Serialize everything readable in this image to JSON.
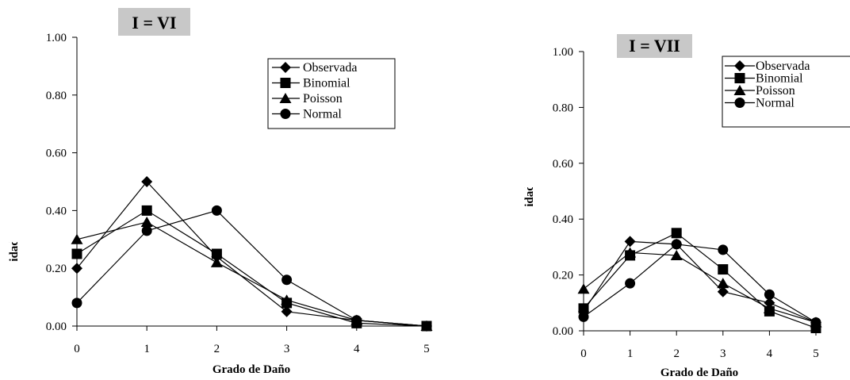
{
  "chart_data": [
    {
      "type": "line",
      "title": "I = VI",
      "xlabel": "Grado de Daño",
      "ylabel": "Probabilidad de Daño",
      "x": [
        0,
        1,
        2,
        3,
        4,
        5
      ],
      "xticks": [
        "0",
        "1",
        "2",
        "3",
        "4",
        "5"
      ],
      "yticks": [
        "0.00",
        "0.20",
        "0.40",
        "0.60",
        "0.80",
        "1.00"
      ],
      "ylim": [
        0,
        1
      ],
      "legend_position": "top-right",
      "series": [
        {
          "name": "Observada",
          "marker": "diamond",
          "values": [
            0.2,
            0.5,
            0.24,
            0.05,
            0.02,
            0.0
          ]
        },
        {
          "name": "Binomial",
          "marker": "square",
          "values": [
            0.25,
            0.4,
            0.25,
            0.08,
            0.01,
            0.0
          ]
        },
        {
          "name": "Poisson",
          "marker": "triangle",
          "values": [
            0.3,
            0.36,
            0.22,
            0.09,
            0.02,
            0.0
          ]
        },
        {
          "name": "Normal",
          "marker": "circle",
          "values": [
            0.08,
            0.33,
            0.4,
            0.16,
            0.02,
            0.0
          ]
        }
      ]
    },
    {
      "type": "line",
      "title": "I = VII",
      "xlabel": "Grado de Daño",
      "ylabel": "Probabilidad de Daño",
      "x": [
        0,
        1,
        2,
        3,
        4,
        5
      ],
      "xticks": [
        "0",
        "1",
        "2",
        "3",
        "4",
        "5"
      ],
      "yticks": [
        "0.00",
        "0.20",
        "0.40",
        "0.60",
        "0.80",
        "1.00"
      ],
      "ylim": [
        0,
        1
      ],
      "legend_position": "top-right",
      "series": [
        {
          "name": "Observada",
          "marker": "diamond",
          "values": [
            0.07,
            0.32,
            0.31,
            0.14,
            0.1,
            0.03
          ]
        },
        {
          "name": "Binomial",
          "marker": "square",
          "values": [
            0.08,
            0.27,
            0.35,
            0.22,
            0.07,
            0.01
          ]
        },
        {
          "name": "Poisson",
          "marker": "triangle",
          "values": [
            0.15,
            0.28,
            0.27,
            0.17,
            0.08,
            0.03
          ]
        },
        {
          "name": "Normal",
          "marker": "circle",
          "values": [
            0.05,
            0.17,
            0.31,
            0.29,
            0.13,
            0.03
          ]
        }
      ]
    }
  ]
}
